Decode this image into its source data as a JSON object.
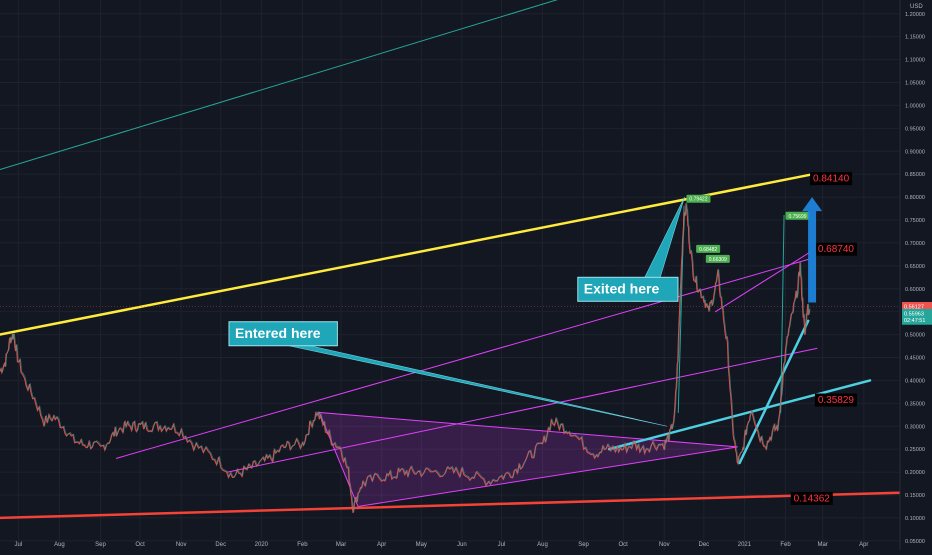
{
  "chart_data": {
    "type": "candlestick",
    "y_axis": {
      "currency_label": "USD",
      "scale": "linear",
      "ticks": [
        "1.20000",
        "1.15000",
        "1.10000",
        "1.05000",
        "1.00000",
        "0.95000",
        "0.90000",
        "0.85000",
        "0.80000",
        "0.75000",
        "0.70000",
        "0.65000",
        "0.60000",
        "0.55000",
        "0.50000",
        "0.45000",
        "0.40000",
        "0.35000",
        "0.30000",
        "0.25000",
        "0.20000",
        "0.15000",
        "0.10000",
        "0.05000"
      ],
      "tick_values": [
        1.2,
        1.15,
        1.1,
        1.05,
        1.0,
        0.95,
        0.9,
        0.85,
        0.8,
        0.75,
        0.7,
        0.65,
        0.6,
        0.55,
        0.5,
        0.45,
        0.4,
        0.35,
        0.3,
        0.25,
        0.2,
        0.15,
        0.1,
        0.05
      ],
      "range": [
        0.03,
        1.23
      ],
      "price_tags": [
        {
          "label": "0.56127",
          "value": 0.56127,
          "color": "#ef5350"
        },
        {
          "label": "0.55963",
          "value": 0.5463,
          "color": "#26a69a"
        },
        {
          "label": "02:47:51",
          "value": 0.5313,
          "color": "#26a69a"
        }
      ]
    },
    "x_axis": {
      "range": [
        2019.459,
        2021.322
      ],
      "ticks": [
        {
          "label": "Jul",
          "t": 2019.497
        },
        {
          "label": "Aug",
          "t": 2019.582
        },
        {
          "label": "Sep",
          "t": 2019.667
        },
        {
          "label": "Oct",
          "t": 2019.749
        },
        {
          "label": "Nov",
          "t": 2019.834
        },
        {
          "label": "Dec",
          "t": 2019.916
        },
        {
          "label": "2020",
          "t": 2020.0
        },
        {
          "label": "Feb",
          "t": 2020.085
        },
        {
          "label": "Mar",
          "t": 2020.165
        },
        {
          "label": "Apr",
          "t": 2020.249
        },
        {
          "label": "May",
          "t": 2020.331
        },
        {
          "label": "Jun",
          "t": 2020.415
        },
        {
          "label": "Jul",
          "t": 2020.497
        },
        {
          "label": "Aug",
          "t": 2020.582
        },
        {
          "label": "Sep",
          "t": 2020.667
        },
        {
          "label": "Oct",
          "t": 2020.749
        },
        {
          "label": "Nov",
          "t": 2020.834
        },
        {
          "label": "Dec",
          "t": 2020.916
        },
        {
          "label": "2021",
          "t": 2021.0
        },
        {
          "label": "Feb",
          "t": 2021.085
        },
        {
          "label": "Mar",
          "t": 2021.162
        },
        {
          "label": "Apr",
          "t": 2021.247
        }
      ]
    },
    "price_series": {
      "points": [
        [
          2019.459,
          0.42
        ],
        [
          2019.47,
          0.44
        ],
        [
          2019.48,
          0.49
        ],
        [
          2019.487,
          0.5
        ],
        [
          2019.495,
          0.45
        ],
        [
          2019.51,
          0.4
        ],
        [
          2019.53,
          0.36
        ],
        [
          2019.55,
          0.31
        ],
        [
          2019.57,
          0.32
        ],
        [
          2019.59,
          0.3
        ],
        [
          2019.61,
          0.27
        ],
        [
          2019.63,
          0.26
        ],
        [
          2019.65,
          0.26
        ],
        [
          2019.667,
          0.25
        ],
        [
          2019.685,
          0.27
        ],
        [
          2019.7,
          0.29
        ],
        [
          2019.72,
          0.3
        ],
        [
          2019.737,
          0.3
        ],
        [
          2019.75,
          0.3
        ],
        [
          2019.77,
          0.3
        ],
        [
          2019.79,
          0.3
        ],
        [
          2019.81,
          0.3
        ],
        [
          2019.834,
          0.29
        ],
        [
          2019.86,
          0.26
        ],
        [
          2019.89,
          0.24
        ],
        [
          2019.916,
          0.22
        ],
        [
          2019.94,
          0.19
        ],
        [
          2019.96,
          0.2
        ],
        [
          2019.98,
          0.21
        ],
        [
          2020.0,
          0.22
        ],
        [
          2020.02,
          0.23
        ],
        [
          2020.04,
          0.25
        ],
        [
          2020.06,
          0.26
        ],
        [
          2020.085,
          0.26
        ],
        [
          2020.1,
          0.3
        ],
        [
          2020.115,
          0.33
        ],
        [
          2020.13,
          0.3
        ],
        [
          2020.145,
          0.27
        ],
        [
          2020.165,
          0.25
        ],
        [
          2020.18,
          0.2
        ],
        [
          2020.19,
          0.12
        ],
        [
          2020.205,
          0.17
        ],
        [
          2020.22,
          0.18
        ],
        [
          2020.249,
          0.19
        ],
        [
          2020.27,
          0.19
        ],
        [
          2020.29,
          0.2
        ],
        [
          2020.31,
          0.2
        ],
        [
          2020.331,
          0.2
        ],
        [
          2020.36,
          0.2
        ],
        [
          2020.39,
          0.2
        ],
        [
          2020.415,
          0.2
        ],
        [
          2020.44,
          0.19
        ],
        [
          2020.47,
          0.18
        ],
        [
          2020.497,
          0.19
        ],
        [
          2020.52,
          0.2
        ],
        [
          2020.54,
          0.22
        ],
        [
          2020.56,
          0.24
        ],
        [
          2020.582,
          0.26
        ],
        [
          2020.6,
          0.31
        ],
        [
          2020.62,
          0.3
        ],
        [
          2020.64,
          0.29
        ],
        [
          2020.667,
          0.26
        ],
        [
          2020.69,
          0.24
        ],
        [
          2020.71,
          0.25
        ],
        [
          2020.73,
          0.25
        ],
        [
          2020.749,
          0.25
        ],
        [
          2020.77,
          0.26
        ],
        [
          2020.79,
          0.25
        ],
        [
          2020.81,
          0.26
        ],
        [
          2020.834,
          0.26
        ],
        [
          2020.845,
          0.28
        ],
        [
          2020.855,
          0.32
        ],
        [
          2020.862,
          0.45
        ],
        [
          2020.868,
          0.62
        ],
        [
          2020.874,
          0.75
        ],
        [
          2020.88,
          0.78
        ],
        [
          2020.886,
          0.7
        ],
        [
          2020.895,
          0.63
        ],
        [
          2020.905,
          0.6
        ],
        [
          2020.916,
          0.58
        ],
        [
          2020.925,
          0.55
        ],
        [
          2020.935,
          0.58
        ],
        [
          2020.945,
          0.63
        ],
        [
          2020.955,
          0.55
        ],
        [
          2020.965,
          0.47
        ],
        [
          2020.975,
          0.3
        ],
        [
          2020.985,
          0.22
        ],
        [
          2020.995,
          0.24
        ],
        [
          2021.005,
          0.3
        ],
        [
          2021.015,
          0.34
        ],
        [
          2021.03,
          0.28
        ],
        [
          2021.045,
          0.26
        ],
        [
          2021.06,
          0.29
        ],
        [
          2021.07,
          0.3
        ],
        [
          2021.08,
          0.42
        ],
        [
          2021.09,
          0.5
        ],
        [
          2021.1,
          0.55
        ],
        [
          2021.11,
          0.6
        ],
        [
          2021.115,
          0.65
        ],
        [
          2021.12,
          0.57
        ],
        [
          2021.125,
          0.5
        ],
        [
          2021.13,
          0.56
        ],
        [
          2021.135,
          0.55
        ]
      ]
    },
    "trend_lines": [
      {
        "name": "teal-upper-channel",
        "color": "#26a69a",
        "width": 1,
        "points": [
          [
            2019.459,
            0.86
          ],
          [
            2020.797,
            1.29
          ]
        ]
      },
      {
        "name": "yellow-resistance",
        "color": "#ffeb3b",
        "width": 2.5,
        "points": [
          [
            2019.459,
            0.5
          ],
          [
            2021.142,
            0.85
          ]
        ]
      },
      {
        "name": "red-support",
        "color": "#f44336",
        "width": 2.5,
        "points": [
          [
            2019.459,
            0.1
          ],
          [
            2021.322,
            0.155
          ]
        ]
      },
      {
        "name": "magenta-channel-top",
        "color": "#e040fb",
        "width": 1,
        "points": [
          [
            2019.7,
            0.23
          ],
          [
            2021.135,
            0.665
          ]
        ]
      },
      {
        "name": "magenta-channel-bottom",
        "color": "#e040fb",
        "width": 1,
        "points": [
          [
            2019.93,
            0.2
          ],
          [
            2021.15,
            0.47
          ]
        ]
      },
      {
        "name": "magenta-inner-line",
        "color": "#e040fb",
        "width": 1,
        "points": [
          [
            2020.94,
            0.55
          ],
          [
            2021.136,
            0.68
          ]
        ]
      },
      {
        "name": "cyan-breakout-line",
        "color": "#4dd0e1",
        "width": 2.5,
        "points": [
          [
            2020.72,
            0.25
          ],
          [
            2021.26,
            0.4
          ]
        ]
      },
      {
        "name": "cyan-steep-line",
        "color": "#4dd0e1",
        "width": 2.5,
        "points": [
          [
            2020.99,
            0.22
          ],
          [
            2021.132,
            0.53
          ]
        ]
      },
      {
        "name": "teal-spike-line-1",
        "color": "#26a69a",
        "width": 1,
        "points": [
          [
            2020.863,
            0.33
          ],
          [
            2020.875,
            0.78
          ]
        ]
      },
      {
        "name": "teal-spike-line-2",
        "color": "#26a69a",
        "width": 1,
        "points": [
          [
            2021.075,
            0.33
          ],
          [
            2021.082,
            0.76
          ]
        ]
      }
    ],
    "triangle_pattern": {
      "color": "#e040fb",
      "fill": "rgba(224,64,251,0.18)",
      "points": [
        [
          2020.12,
          0.33
        ],
        [
          2020.2,
          0.125
        ],
        [
          2020.986,
          0.255
        ]
      ]
    },
    "level_labels": [
      {
        "label": "0.84140",
        "value": 0.8414,
        "t": 2021.14
      },
      {
        "label": "0.68740",
        "value": 0.6874,
        "t": 2021.15
      },
      {
        "label": "0.35829",
        "value": 0.35829,
        "t": 2021.15
      },
      {
        "label": "0.14362",
        "value": 0.14362,
        "t": 2021.1
      }
    ],
    "peak_tags": [
      {
        "label": "0.79422",
        "value": 0.79422,
        "t": 2020.88
      },
      {
        "label": "0.68482",
        "value": 0.68482,
        "t": 2020.9
      },
      {
        "label": "0.66309",
        "value": 0.66309,
        "t": 2020.92
      },
      {
        "label": "0.75699",
        "value": 0.75699,
        "t": 2021.085
      }
    ],
    "callouts": [
      {
        "text": "Exited here",
        "box_t": 2020.655,
        "box_v": 0.625,
        "target": [
          2020.876,
          0.8
        ]
      },
      {
        "text": "Entered here",
        "box_t": 2019.933,
        "box_v": 0.528,
        "target": [
          2020.84,
          0.3
        ]
      }
    ],
    "arrow": {
      "color": "#1e88e5",
      "from": [
        2021.14,
        0.57
      ],
      "to": [
        2021.14,
        0.8
      ]
    },
    "dashed_level": {
      "value": 0.56127
    }
  }
}
